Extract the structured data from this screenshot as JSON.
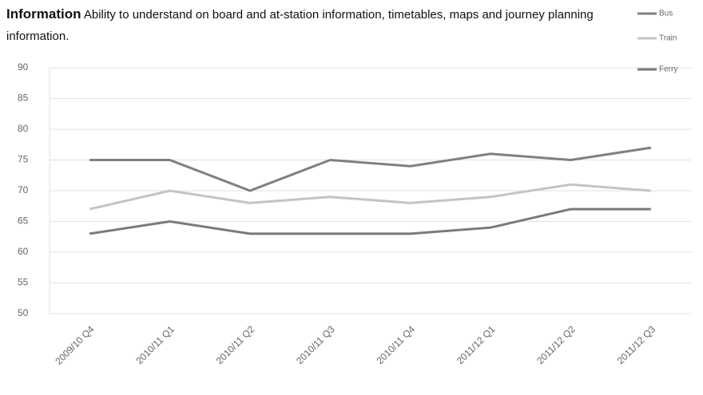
{
  "chart_data": {
    "type": "line",
    "title": "Information",
    "subtitle": "Ability to understand on board and at-station information, timetables, maps and journey planning information.",
    "categories": [
      "2009/10 Q4",
      "2010/11 Q1",
      "2010/11 Q2",
      "2010/11 Q3",
      "2010/11 Q4",
      "2011/12 Q1",
      "2011/12 Q2",
      "2011/12 Q3"
    ],
    "series": [
      {
        "name": "Bus",
        "color": "#808080",
        "values": [
          75,
          75,
          70,
          75,
          74,
          76,
          75,
          77
        ]
      },
      {
        "name": "Train",
        "color": "#c4c4c4",
        "values": [
          67,
          70,
          68,
          69,
          68,
          69,
          71,
          70
        ]
      },
      {
        "name": "Ferry",
        "color": "#7a7a7a",
        "values": [
          63,
          65,
          63,
          63,
          63,
          64,
          67,
          67
        ]
      }
    ],
    "ylim": [
      50,
      90
    ],
    "yticks": [
      50,
      55,
      60,
      65,
      70,
      75,
      80,
      85,
      90
    ],
    "grid": true,
    "legend": "top-right"
  }
}
